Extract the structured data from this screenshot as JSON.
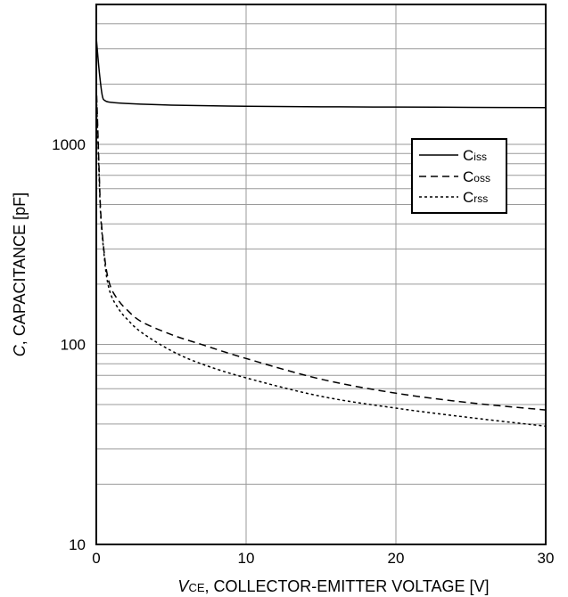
{
  "chart_data": {
    "type": "line",
    "xlabel": {
      "italic": "V",
      "sub": "CE",
      "rest": ", COLLECTOR-EMITTER VOLTAGE [V]"
    },
    "ylabel": {
      "italic": "C",
      "rest": ", CAPACITANCE [pF]"
    },
    "xlim": [
      0,
      30
    ],
    "ylim": [
      10,
      5000
    ],
    "y_scale": "log",
    "grid": true,
    "legend_position": "right",
    "x_ticks": [
      0,
      10,
      20,
      30
    ],
    "x_tick_labels": [
      "0",
      "10",
      "20",
      "30"
    ],
    "y_ticks": [
      10,
      100,
      1000
    ],
    "y_tick_labels": [
      "10",
      "100",
      "1000"
    ],
    "series": [
      {
        "name": "C",
        "sub": "iss",
        "style": "solid",
        "x": [
          0,
          0.2,
          0.4,
          0.6,
          1,
          2,
          5,
          10,
          15,
          20,
          25,
          30
        ],
        "y": [
          3400,
          2300,
          1750,
          1650,
          1620,
          1600,
          1570,
          1550,
          1540,
          1535,
          1530,
          1525
        ]
      },
      {
        "name": "C",
        "sub": "oss",
        "style": "dashed",
        "x": [
          0,
          0.1,
          0.2,
          0.3,
          0.5,
          0.7,
          1,
          1.5,
          2,
          3,
          5,
          7,
          10,
          15,
          20,
          25,
          30
        ],
        "y": [
          2000,
          1200,
          700,
          450,
          300,
          230,
          190,
          165,
          150,
          130,
          112,
          100,
          85,
          67,
          57,
          51,
          47
        ]
      },
      {
        "name": "C",
        "sub": "rss",
        "style": "dotted",
        "x": [
          0,
          0.1,
          0.2,
          0.3,
          0.5,
          0.7,
          1,
          1.5,
          2,
          3,
          5,
          7,
          10,
          15,
          20,
          25,
          30
        ],
        "y": [
          1800,
          1100,
          650,
          430,
          290,
          215,
          175,
          150,
          135,
          115,
          93,
          80,
          68,
          55,
          48,
          43,
          39
        ]
      }
    ]
  }
}
